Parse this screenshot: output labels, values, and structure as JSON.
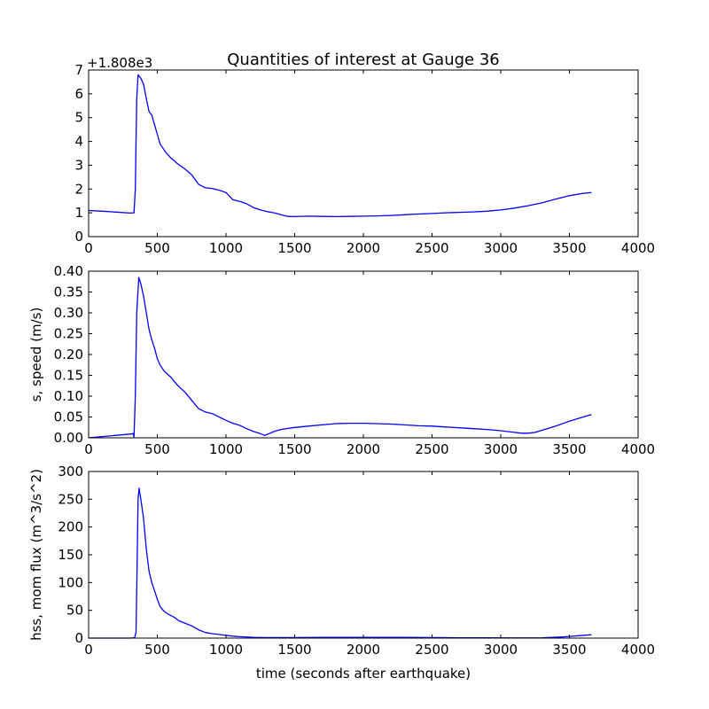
{
  "title": "Quantities of interest at Gauge 36",
  "chart_data": [
    {
      "type": "line",
      "title": "Quantities of interest at Gauge 36",
      "xlabel": "",
      "ylabel": "",
      "offset_label": "+1.808e3",
      "xlim": [
        0,
        4000
      ],
      "ylim": [
        0,
        7
      ],
      "xticks": [
        0,
        500,
        1000,
        1500,
        2000,
        2500,
        3000,
        3500,
        4000
      ],
      "yticks": [
        0,
        1,
        2,
        3,
        4,
        5,
        6,
        7
      ],
      "tick_decimals": 0,
      "grid": false,
      "color": "#0000ff",
      "series": [
        {
          "x": [
            0,
            100,
            200,
            300,
            330,
            340,
            345,
            350,
            360,
            380,
            400,
            420,
            440,
            460,
            480,
            500,
            520,
            560,
            600,
            650,
            700,
            750,
            800,
            850,
            900,
            950,
            1000,
            1050,
            1100,
            1150,
            1200,
            1250,
            1300,
            1350,
            1400,
            1450,
            1500,
            1600,
            1700,
            1800,
            1900,
            2000,
            2100,
            2200,
            2300,
            2400,
            2500,
            2600,
            2700,
            2800,
            2900,
            3000,
            3100,
            3200,
            3300,
            3400,
            3500,
            3600,
            3660
          ],
          "y": [
            1.1,
            1.07,
            1.03,
            0.99,
            1.0,
            2.0,
            4.0,
            5.8,
            6.8,
            6.65,
            6.4,
            5.8,
            5.25,
            5.1,
            4.7,
            4.3,
            3.9,
            3.55,
            3.3,
            3.05,
            2.85,
            2.6,
            2.2,
            2.05,
            2.02,
            1.95,
            1.85,
            1.55,
            1.48,
            1.38,
            1.22,
            1.12,
            1.05,
            1.0,
            0.92,
            0.85,
            0.84,
            0.86,
            0.85,
            0.84,
            0.85,
            0.86,
            0.87,
            0.89,
            0.92,
            0.95,
            0.97,
            1.0,
            1.02,
            1.04,
            1.07,
            1.12,
            1.2,
            1.3,
            1.42,
            1.58,
            1.72,
            1.82,
            1.85
          ]
        }
      ]
    },
    {
      "type": "line",
      "xlabel": "",
      "ylabel": "s, speed (m/s)",
      "offset_label": "",
      "xlim": [
        0,
        4000
      ],
      "ylim": [
        0,
        0.4
      ],
      "xticks": [
        0,
        500,
        1000,
        1500,
        2000,
        2500,
        3000,
        3500,
        4000
      ],
      "yticks": [
        0,
        0.05,
        0.1,
        0.15,
        0.2,
        0.25,
        0.3,
        0.35,
        0.4
      ],
      "tick_decimals": 2,
      "grid": false,
      "color": "#0000ff",
      "series": [
        {
          "x": [
            0,
            100,
            200,
            300,
            325,
            330,
            340,
            350,
            365,
            380,
            400,
            420,
            440,
            460,
            480,
            500,
            520,
            550,
            600,
            650,
            700,
            750,
            800,
            850,
            900,
            950,
            1000,
            1050,
            1100,
            1150,
            1200,
            1250,
            1280,
            1300,
            1350,
            1400,
            1500,
            1600,
            1700,
            1800,
            1900,
            2000,
            2100,
            2200,
            2300,
            2400,
            2500,
            2600,
            2700,
            2800,
            2900,
            3000,
            3100,
            3150,
            3200,
            3250,
            3300,
            3400,
            3500,
            3600,
            3660
          ],
          "y": [
            0.0,
            0.003,
            0.006,
            0.009,
            0.01,
            0.002,
            0.1,
            0.3,
            0.385,
            0.37,
            0.34,
            0.3,
            0.26,
            0.235,
            0.215,
            0.19,
            0.175,
            0.16,
            0.145,
            0.125,
            0.11,
            0.09,
            0.07,
            0.062,
            0.058,
            0.05,
            0.042,
            0.035,
            0.03,
            0.022,
            0.015,
            0.01,
            0.006,
            0.008,
            0.015,
            0.02,
            0.025,
            0.028,
            0.031,
            0.034,
            0.035,
            0.035,
            0.034,
            0.033,
            0.031,
            0.029,
            0.028,
            0.026,
            0.024,
            0.022,
            0.02,
            0.017,
            0.013,
            0.011,
            0.011,
            0.013,
            0.018,
            0.028,
            0.04,
            0.05,
            0.056
          ]
        }
      ]
    },
    {
      "type": "line",
      "xlabel": "time (seconds after earthquake)",
      "ylabel": "hss, mom flux (m^3/s^2)",
      "offset_label": "",
      "xlim": [
        0,
        4000
      ],
      "ylim": [
        0,
        300
      ],
      "xticks": [
        0,
        500,
        1000,
        1500,
        2000,
        2500,
        3000,
        3500,
        4000
      ],
      "yticks": [
        0,
        50,
        100,
        150,
        200,
        250,
        300
      ],
      "tick_decimals": 0,
      "grid": false,
      "color": "#0000ff",
      "series": [
        {
          "x": [
            0,
            100,
            200,
            300,
            320,
            335,
            345,
            352,
            360,
            367,
            380,
            400,
            420,
            440,
            460,
            480,
            500,
            520,
            550,
            580,
            620,
            660,
            700,
            750,
            800,
            850,
            900,
            950,
            1000,
            1050,
            1100,
            1200,
            1300,
            1500,
            1700,
            1900,
            2100,
            2300,
            2500,
            2700,
            2900,
            3100,
            3300,
            3450,
            3550,
            3660
          ],
          "y": [
            0,
            0,
            0,
            0,
            0.3,
            1,
            10,
            120,
            250,
            270,
            250,
            215,
            160,
            120,
            100,
            85,
            70,
            57,
            48,
            43,
            38,
            31,
            27,
            22,
            15,
            10,
            8,
            6.5,
            5,
            3.5,
            2.5,
            1.5,
            1,
            1,
            1.2,
            1.5,
            1.5,
            1.3,
            1,
            0.7,
            0.4,
            0.3,
            0.6,
            2,
            4,
            6
          ]
        }
      ]
    }
  ]
}
